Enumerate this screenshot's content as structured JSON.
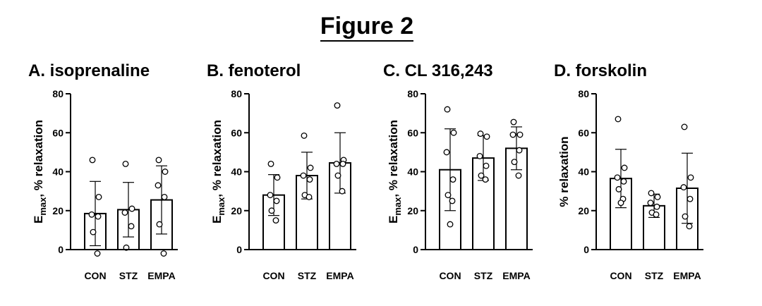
{
  "figure": {
    "title": "Figure 2"
  },
  "chart_data": [
    {
      "type": "bar",
      "title": "A. isoprenaline",
      "ylabel": "E_max, % relaxation",
      "ylabel_main": "E",
      "ylabel_sub": "max",
      "ylabel_rest": ", % relaxation",
      "ylim": [
        0,
        80
      ],
      "yticks": [
        0,
        20,
        40,
        60,
        80
      ],
      "categories": [
        "CON",
        "STZ",
        "EMPA"
      ],
      "means": [
        18.5,
        20.5,
        25.5
      ],
      "sd": [
        16.5,
        14,
        17.5
      ],
      "points": [
        [
          46,
          27,
          18,
          17,
          9,
          -2
        ],
        [
          44,
          21,
          19,
          12,
          1
        ],
        [
          46,
          40,
          33,
          27,
          13,
          -2
        ]
      ]
    },
    {
      "type": "bar",
      "title": "B. fenoterol",
      "ylabel": "E_max, % relaxation",
      "ylabel_main": "E",
      "ylabel_sub": "max",
      "ylabel_rest": ", % relaxation",
      "ylim": [
        0,
        80
      ],
      "yticks": [
        0,
        20,
        40,
        60,
        80
      ],
      "categories": [
        "CON",
        "STZ",
        "EMPA"
      ],
      "means": [
        28,
        38,
        44.5
      ],
      "sd": [
        10.5,
        12,
        15.5
      ],
      "points": [
        [
          44,
          37,
          28,
          25,
          20,
          15
        ],
        [
          58.5,
          42,
          38,
          36,
          28,
          27
        ],
        [
          74,
          46,
          44,
          44,
          38,
          30
        ]
      ]
    },
    {
      "type": "bar",
      "title": "C. CL 316,243",
      "ylabel": "E_max, % relaxation",
      "ylabel_main": "E",
      "ylabel_sub": "max",
      "ylabel_rest": ", % relaxation",
      "ylim": [
        0,
        80
      ],
      "yticks": [
        0,
        20,
        40,
        60,
        80
      ],
      "categories": [
        "CON",
        "STZ",
        "EMPA"
      ],
      "means": [
        41,
        47,
        52
      ],
      "sd": [
        21,
        11.5,
        11
      ],
      "points": [
        [
          72,
          60,
          50,
          36,
          28,
          25,
          13
        ],
        [
          59.5,
          58,
          48,
          43,
          38,
          36
        ],
        [
          65.5,
          59,
          59,
          51,
          45,
          38
        ]
      ]
    },
    {
      "type": "bar",
      "title": "D. forskolin",
      "ylabel": "% relaxation",
      "ylabel_main": "% relaxation",
      "ylabel_sub": "",
      "ylabel_rest": "",
      "ylim": [
        0,
        80
      ],
      "yticks": [
        0,
        20,
        40,
        60,
        80
      ],
      "categories": [
        "CON",
        "STZ",
        "EMPA"
      ],
      "means": [
        36.5,
        22.5,
        31.5
      ],
      "sd": [
        15,
        6,
        18
      ],
      "points": [
        [
          67,
          42,
          37,
          35,
          31,
          26,
          24
        ],
        [
          29,
          27,
          24,
          22,
          19,
          18
        ],
        [
          63,
          37,
          32,
          26,
          17,
          12
        ]
      ]
    }
  ]
}
